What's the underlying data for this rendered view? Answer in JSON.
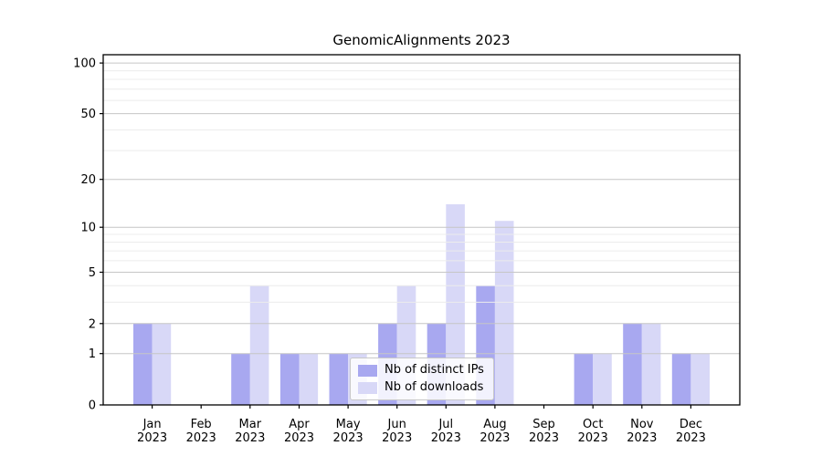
{
  "chart_data": {
    "type": "bar",
    "title": "GenomicAlignments 2023",
    "categories": [
      "Jan",
      "Feb",
      "Mar",
      "Apr",
      "May",
      "Jun",
      "Jul",
      "Aug",
      "Sep",
      "Oct",
      "Nov",
      "Dec"
    ],
    "category_year": "2023",
    "series": [
      {
        "name": "Nb of distinct IPs",
        "color": "#a8a8f0",
        "values": [
          2,
          0,
          1,
          1,
          1,
          2,
          2,
          4,
          0,
          1,
          2,
          1
        ]
      },
      {
        "name": "Nb of downloads",
        "color": "#d8d8f7",
        "values": [
          2,
          0,
          4,
          1,
          1,
          4,
          14,
          11,
          0,
          1,
          2,
          1
        ]
      }
    ],
    "y_axis": {
      "scale": "log1p",
      "ticks": [
        0,
        1,
        2,
        5,
        10,
        20,
        50,
        100
      ],
      "minor_gridlines": [
        3,
        4,
        6,
        7,
        8,
        9,
        30,
        40,
        60,
        70,
        80,
        90
      ],
      "ylim": [
        0,
        112
      ]
    },
    "xlabel": "",
    "ylabel": "",
    "grid": true,
    "legend_position": "inside-bottom-center"
  },
  "colors": {
    "major_grid": "#c6c6c6",
    "minor_grid": "#ececec",
    "spine": "#000000",
    "text": "#000000"
  }
}
